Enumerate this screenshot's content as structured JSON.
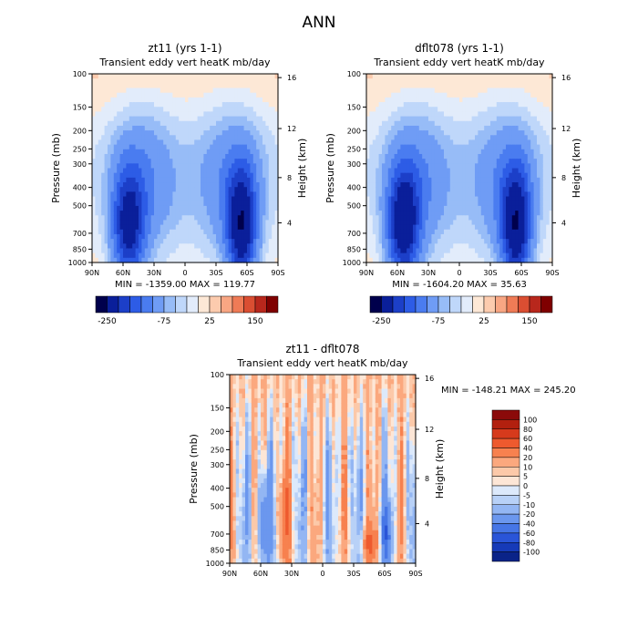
{
  "chart_data": [
    {
      "type": "heatmap",
      "title": "zt11 (yrs 1-1)",
      "subtitle": "Transient eddy vert heatK mb/day",
      "min_label": "MIN = -1359.00",
      "max_label": "MAX = 119.77",
      "xticks": [
        "90N",
        "60N",
        "30N",
        "0",
        "30S",
        "60S",
        "90S"
      ],
      "yticks": [
        "100",
        "150",
        "200",
        "250",
        "300",
        "400",
        "500",
        "700",
        "850",
        "1000"
      ],
      "ylabel": "Pressure (mb)",
      "y2label": "Height (km)",
      "y2ticks": [
        "16",
        "12",
        "8",
        "4"
      ],
      "colorbar_labels": [
        "-250",
        "-75",
        "25",
        "150"
      ],
      "colorbar_colors": [
        "#00004c",
        "#0a1f9a",
        "#1c3fc8",
        "#2d5ce6",
        "#4a7cf0",
        "#6f9cf5",
        "#97bcf7",
        "#bfd7fa",
        "#e2ecfb",
        "#fde8d6",
        "#fccbae",
        "#f8a683",
        "#ef7b56",
        "#da4e32",
        "#b8271c",
        "#7f0000"
      ],
      "xlim": [
        90,
        -90
      ],
      "ylim": [
        1000,
        100
      ],
      "log_y": true,
      "min": -1359.0,
      "max": 119.77
    },
    {
      "type": "heatmap",
      "title": "dflt078 (yrs 1-1)",
      "subtitle": "Transient eddy vert heatK mb/day",
      "min_label": "MIN = -1604.20",
      "max_label": "MAX = 35.63",
      "xticks": [
        "90N",
        "60N",
        "30N",
        "0",
        "30S",
        "60S",
        "90S"
      ],
      "yticks": [
        "100",
        "150",
        "200",
        "250",
        "300",
        "400",
        "500",
        "700",
        "850",
        "1000"
      ],
      "ylabel": "Pressure (mb)",
      "y2label": "Height (km)",
      "y2ticks": [
        "16",
        "12",
        "8",
        "4"
      ],
      "colorbar_labels": [
        "-250",
        "-75",
        "25",
        "150"
      ],
      "colorbar_colors": [
        "#00004c",
        "#0a1f9a",
        "#1c3fc8",
        "#2d5ce6",
        "#4a7cf0",
        "#6f9cf5",
        "#97bcf7",
        "#bfd7fa",
        "#e2ecfb",
        "#fde8d6",
        "#fccbae",
        "#f8a683",
        "#ef7b56",
        "#da4e32",
        "#b8271c",
        "#7f0000"
      ],
      "xlim": [
        90,
        -90
      ],
      "ylim": [
        1000,
        100
      ],
      "log_y": true,
      "min": -1604.2,
      "max": 35.63
    },
    {
      "type": "heatmap",
      "title": "zt11 - dflt078",
      "subtitle": "Transient eddy vert heatK mb/day",
      "min_label": "MIN = -148.21",
      "max_label": "MAX = 245.20",
      "xticks": [
        "90N",
        "60N",
        "30N",
        "0",
        "30S",
        "60S",
        "90S"
      ],
      "yticks": [
        "100",
        "150",
        "200",
        "250",
        "300",
        "400",
        "500",
        "700",
        "850",
        "1000"
      ],
      "ylabel": "Pressure (mb)",
      "y2label": "Height (km)",
      "y2ticks": [
        "16",
        "12",
        "8",
        "4"
      ],
      "colorbar_labels": [
        "100",
        "80",
        "60",
        "40",
        "20",
        "10",
        "5",
        "0",
        "-5",
        "-10",
        "-20",
        "-40",
        "-60",
        "-80",
        "-100"
      ],
      "colorbar_colors": [
        "#8b0a0a",
        "#b2200f",
        "#d63a1c",
        "#ee5a2e",
        "#f7814f",
        "#fba87e",
        "#fcc9a9",
        "#fde6d6",
        "#dce9fb",
        "#b8d1f7",
        "#93b6f3",
        "#6b97ee",
        "#4676e6",
        "#2a55d8",
        "#163ab8",
        "#0a2388"
      ],
      "xlim": [
        90,
        -90
      ],
      "ylim": [
        1000,
        100
      ],
      "log_y": true,
      "min": -148.21,
      "max": 245.2
    }
  ],
  "figure": {
    "title": "ANN"
  }
}
